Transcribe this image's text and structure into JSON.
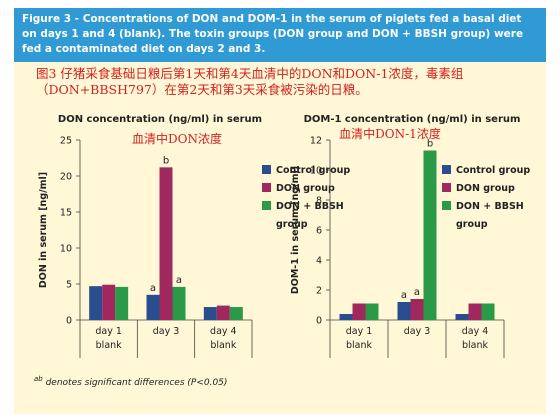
{
  "figure": {
    "caption": "Figure 3 - Concentrations of DON and DOM-1 in the serum of piglets fed a basal diet on days 1 and 4 (blank). The toxin groups (DON group and DON + BBSH group) were fed a contaminated diet on days 2 and 3.",
    "caption_cn": "图3 仔猪采食基础日粮后第1天和第4天血清中的DON和DON-1浓度，毒素组（DON+BBSH797）在第2天和第3天采食被污染的日粮。",
    "footnote_sup": "ab",
    "footnote_text": " denotes significant differences (P<0.05)"
  },
  "colors": {
    "frame_bg": "#fff7d6",
    "caption_bar": "#2f9ad3",
    "control": "#2a4d8f",
    "don": "#a0285e",
    "bbsh": "#2a9a48"
  },
  "chart_data": [
    {
      "type": "bar",
      "title": "DON concentration (ng/ml) in serum",
      "subtitle_cn": "血清中DON浓度",
      "ylabel": "DON in serum [ng/ml]",
      "ylim": [
        0,
        25
      ],
      "yticks": [
        0,
        5,
        10,
        15,
        20,
        25
      ],
      "categories": [
        [
          "day 1",
          "blank"
        ],
        [
          "day 3"
        ],
        [
          "day 4",
          "blank"
        ]
      ],
      "series": [
        {
          "name": "Control group",
          "values": [
            4.7,
            3.5,
            1.8
          ],
          "labels": [
            "",
            "a",
            ""
          ]
        },
        {
          "name": "DON group",
          "values": [
            4.9,
            21.2,
            2.0
          ],
          "labels": [
            "",
            "b",
            ""
          ]
        },
        {
          "name": "DON + BBSH group",
          "values": [
            4.6,
            4.6,
            1.8
          ],
          "labels": [
            "",
            "a",
            ""
          ]
        }
      ],
      "legend": "right"
    },
    {
      "type": "bar",
      "title": "DOM-1 concentration (ng/ml) in serum",
      "subtitle_cn": "血清中DON-1浓度",
      "ylabel": "DOM-1 in serum [ng/ml]",
      "ylim": [
        0,
        12
      ],
      "yticks": [
        0,
        2,
        4,
        6,
        8,
        10,
        12
      ],
      "categories": [
        [
          "day 1",
          "blank"
        ],
        [
          "day 3"
        ],
        [
          "day 4",
          "blank"
        ]
      ],
      "series": [
        {
          "name": "Control group",
          "values": [
            0.4,
            1.2,
            0.4
          ],
          "labels": [
            "",
            "a",
            ""
          ]
        },
        {
          "name": "DON group",
          "values": [
            1.1,
            1.4,
            1.1
          ],
          "labels": [
            "",
            "a",
            ""
          ]
        },
        {
          "name": "DON + BBSH group",
          "values": [
            1.1,
            11.3,
            1.1
          ],
          "labels": [
            "",
            "b",
            ""
          ]
        }
      ],
      "legend": "right"
    }
  ]
}
